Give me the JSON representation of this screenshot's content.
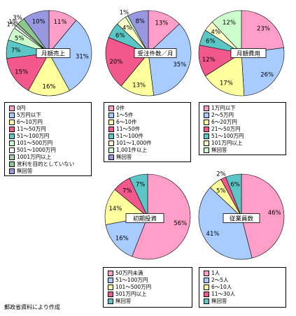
{
  "source_note": "郵政省資料により作成",
  "chart_data": [
    {
      "type": "pie",
      "title": "月額売上",
      "categories": [
        "0円",
        "5万円以下",
        "6～10万円",
        "11～50万円",
        "51～100万円",
        "101～500万円",
        "501～1000万円",
        "1001万円以上",
        "営利を目的としていない",
        "無回答"
      ],
      "values": [
        11,
        31,
        16,
        15,
        7,
        5,
        1,
        1,
        3,
        10
      ],
      "data_labels": [
        "11%",
        "31%",
        "16%",
        "15%",
        "7%",
        "5%",
        "1%",
        "1%",
        "3%",
        "10%"
      ],
      "colors": [
        "#FF9EC8",
        "#A8CCFF",
        "#FFFF9E",
        "#F2588C",
        "#5CC6C6",
        "#CCFFCC",
        "#FFFFFF",
        "#A8CCA8",
        "#8CC88C",
        "#9898E0"
      ]
    },
    {
      "type": "pie",
      "title": "受注件数／月",
      "categories": [
        "0件",
        "1～5件",
        "6～10件",
        "11～50件",
        "51～100件",
        "101～1,000件",
        "1,001件以上",
        "無回答"
      ],
      "values": [
        13,
        35,
        13,
        20,
        6,
        4,
        1,
        8
      ],
      "data_labels": [
        "13%",
        "35%",
        "13%",
        "20%",
        "6%",
        "4%",
        "1%",
        "8%"
      ],
      "colors": [
        "#FF9EC8",
        "#A8CCFF",
        "#FFFF9E",
        "#F2588C",
        "#5CC6C6",
        "#FFFFCC",
        "#CCFFCC",
        "#9898E0"
      ]
    },
    {
      "type": "pie",
      "title": "月額費用",
      "categories": [
        "1万円以下",
        "2～5万円",
        "6～20万円",
        "21～50万円",
        "51～100万円",
        "101万円以上",
        "無回答"
      ],
      "values": [
        23,
        26,
        17,
        12,
        6,
        4,
        12
      ],
      "data_labels": [
        "23%",
        "26%",
        "17%",
        "12%",
        "6%",
        "4%",
        "12%"
      ],
      "colors": [
        "#FF9EC8",
        "#A8CCFF",
        "#FFFF9E",
        "#F2588C",
        "#5CC6C6",
        "#FFFFCC",
        "#CCFFCC"
      ]
    },
    {
      "type": "pie",
      "title": "初期投資",
      "categories": [
        "50万円未満",
        "51～100万円",
        "101～500万円",
        "501万円以上",
        "無回答"
      ],
      "values": [
        56,
        16,
        14,
        7,
        7
      ],
      "data_labels": [
        "56%",
        "16%",
        "14%",
        "7%",
        "7%"
      ],
      "colors": [
        "#FF9EC8",
        "#A8CCFF",
        "#FFFF9E",
        "#F2588C",
        "#5CC6C6"
      ]
    },
    {
      "type": "pie",
      "title": "従業員数",
      "categories": [
        "1人",
        "2～5人",
        "6～10人",
        "11～30人",
        "無回答"
      ],
      "values": [
        46,
        41,
        5,
        2,
        6
      ],
      "data_labels": [
        "46%",
        "41%",
        "5%",
        "2%",
        "6%"
      ],
      "colors": [
        "#FF9EC8",
        "#A8CCFF",
        "#FFFF9E",
        "#F2588C",
        "#5CC6C6"
      ]
    }
  ]
}
